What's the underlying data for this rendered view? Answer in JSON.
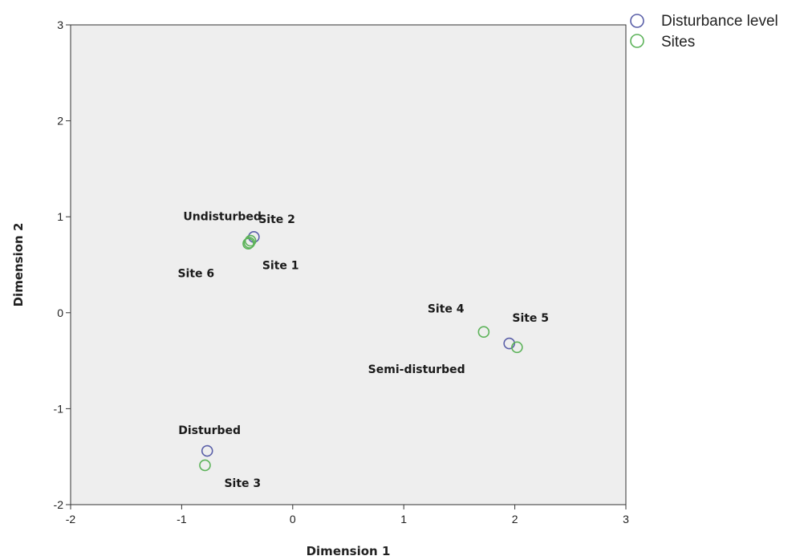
{
  "chart_data": {
    "type": "scatter",
    "xlabel": "Dimension 1",
    "ylabel": "Dimension 2",
    "xlim": [
      -2,
      3
    ],
    "ylim": [
      -2,
      3
    ],
    "x_ticks": [
      -2,
      -1,
      0,
      1,
      2,
      3
    ],
    "y_ticks": [
      -2,
      -1,
      0,
      1,
      2,
      3
    ],
    "x_tick_labels": [
      "-2",
      "-1",
      "0",
      "1",
      "2",
      "3"
    ],
    "y_tick_labels": [
      "-2",
      "-1",
      "0",
      "1",
      "2",
      "3"
    ],
    "grid": false,
    "legend_position": "top-right",
    "series": [
      {
        "name": "Disturbance level",
        "color": "#5a5fa8",
        "points": [
          {
            "label": "Undisturbed",
            "x": -0.35,
            "y": 0.79
          },
          {
            "label": "Semi-disturbed",
            "x": 1.95,
            "y": -0.32
          },
          {
            "label": "Disturbed",
            "x": -0.77,
            "y": -1.44
          }
        ]
      },
      {
        "name": "Sites",
        "color": "#5db35a",
        "points": [
          {
            "label": "Site 1",
            "x": -0.39,
            "y": 0.73
          },
          {
            "label": "Site 2",
            "x": -0.38,
            "y": 0.75
          },
          {
            "label": "Site 3",
            "x": -0.79,
            "y": -1.59
          },
          {
            "label": "Site 4",
            "x": 1.72,
            "y": -0.2
          },
          {
            "label": "Site 5",
            "x": 2.02,
            "y": -0.36
          },
          {
            "label": "Site 6",
            "x": -0.4,
            "y": 0.72
          }
        ]
      }
    ]
  }
}
